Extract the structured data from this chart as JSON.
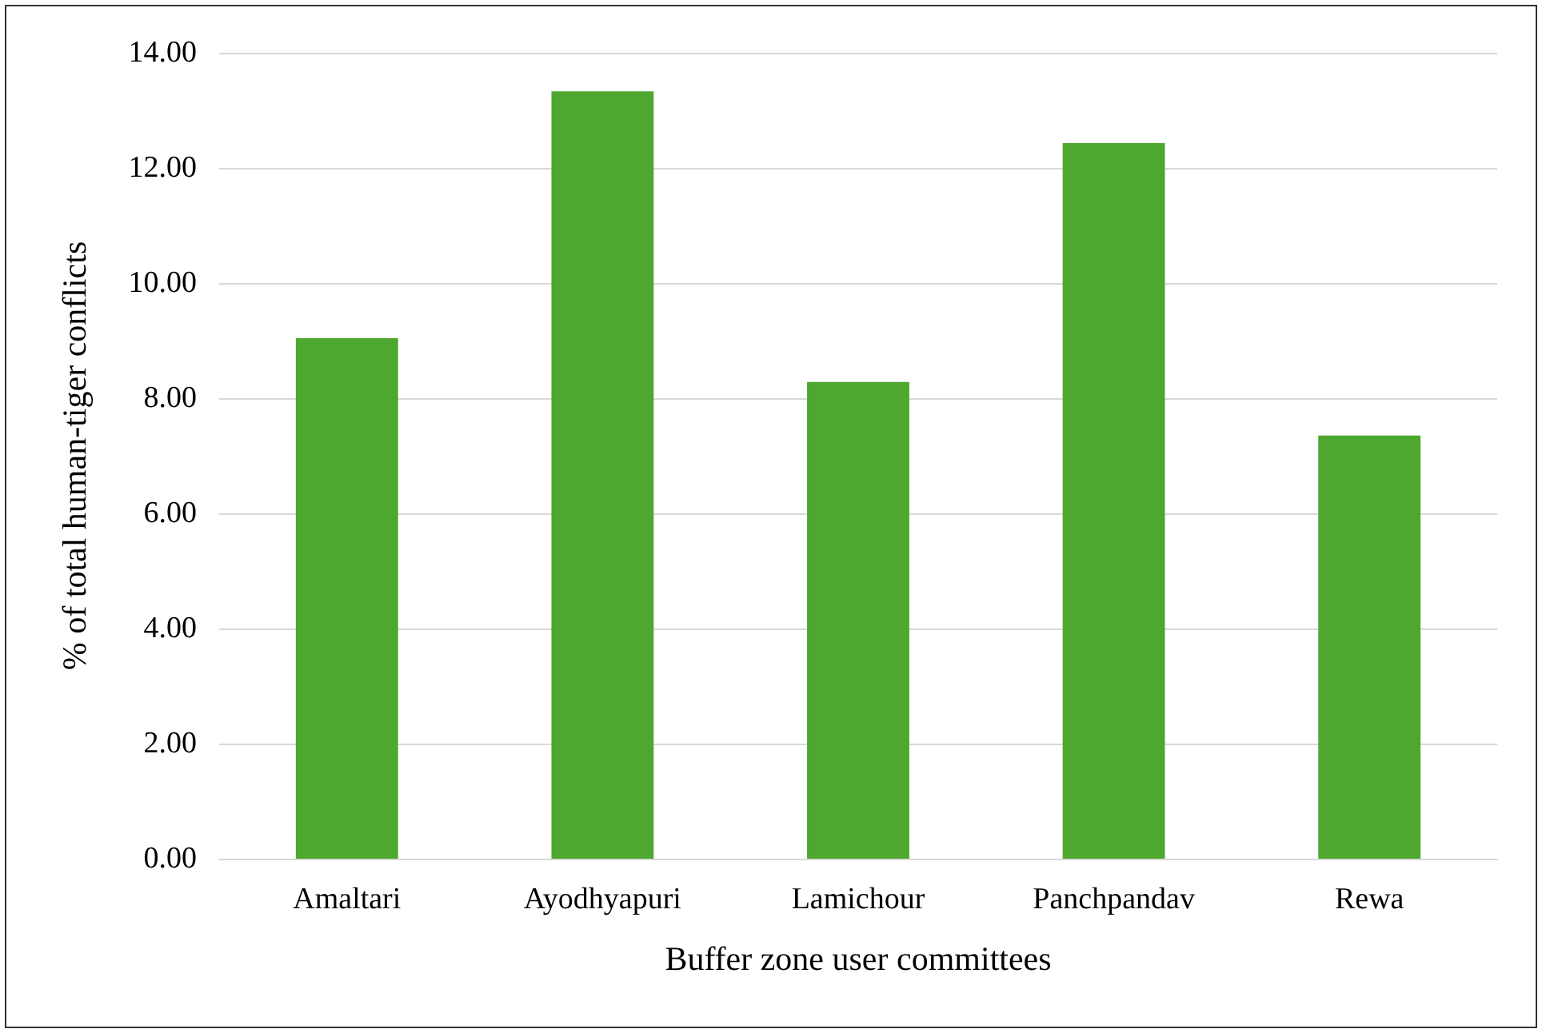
{
  "chart_data": {
    "type": "bar",
    "xlabel": "Buffer zone user committees",
    "ylabel": "% of total human-tiger conflicts",
    "categories": [
      "Amaltari",
      "Ayodhyapuri",
      "Lamichour",
      "Panchpandav",
      "Rewa"
    ],
    "values": [
      9.04,
      13.33,
      8.28,
      12.43,
      7.35
    ],
    "color": "#4ea72e",
    "ylim": [
      0,
      14
    ],
    "yticks": [
      {
        "value": 0,
        "label": "0.00"
      },
      {
        "value": 2,
        "label": "2.00"
      },
      {
        "value": 4,
        "label": "4.00"
      },
      {
        "value": 6,
        "label": "6.00"
      },
      {
        "value": 8,
        "label": "8.00"
      },
      {
        "value": 10,
        "label": "10.00"
      },
      {
        "value": 12,
        "label": "12.00"
      },
      {
        "value": 14,
        "label": "14.00"
      }
    ],
    "grid": "y"
  }
}
